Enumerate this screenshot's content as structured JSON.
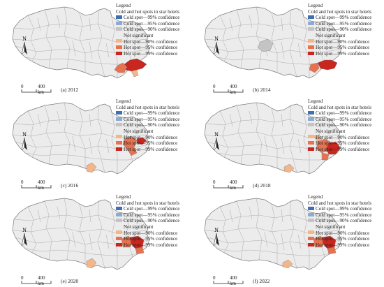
{
  "panels": [
    {
      "caption": "(a) 2012"
    },
    {
      "caption": "(b) 2014"
    },
    {
      "caption": "(c) 2016"
    },
    {
      "caption": "(d) 2018"
    },
    {
      "caption": "(e) 2020"
    },
    {
      "caption": "(f) 2022"
    }
  ],
  "legend": {
    "heading": "Legend",
    "title": "Cold and hot spots in star hotels",
    "items": [
      {
        "label": "Cold spot—99% confidence",
        "color": "#3f6fb4"
      },
      {
        "label": "Cold spot—95% confidence",
        "color": "#8fa9cf"
      },
      {
        "label": "Cold spot—90% confidence",
        "color": "#c4c4c4"
      },
      {
        "label": "Not significant",
        "color": ""
      },
      {
        "label": "Hot spot—90% confidence",
        "color": "#f4b689"
      },
      {
        "label": "Hot spot—95% confidence",
        "color": "#e8714f"
      },
      {
        "label": "Hot spot—99% confidence",
        "color": "#c8261e"
      }
    ]
  },
  "north_label": "N",
  "scale": {
    "zero": "0",
    "distance": "400 km"
  },
  "colors": {
    "base": "#ececec",
    "border": "#7a7a7a",
    "region_outline": "#9d9d9d"
  }
}
